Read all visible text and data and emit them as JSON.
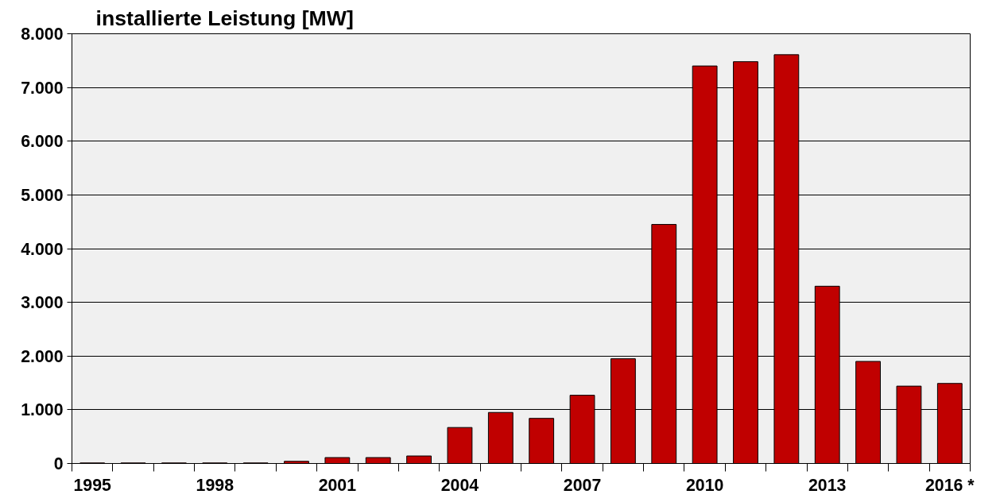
{
  "chart_data": {
    "type": "bar",
    "title": "installierte Leistung [MW]",
    "categories": [
      "1995",
      null,
      null,
      "1998",
      null,
      null,
      "2001",
      null,
      null,
      "2004",
      null,
      null,
      "2007",
      null,
      null,
      "2010",
      null,
      null,
      "2013",
      null,
      null,
      "2016 *"
    ],
    "values": [
      10,
      10,
      10,
      10,
      10,
      40,
      110,
      110,
      140,
      670,
      950,
      840,
      1270,
      1950,
      4450,
      7400,
      7480,
      7610,
      3300,
      1900,
      1440,
      1490
    ],
    "color": "#c00000",
    "ylim": [
      0,
      8000
    ],
    "yticks": [
      {
        "value": 0,
        "label": "0"
      },
      {
        "value": 1000,
        "label": "1.000"
      },
      {
        "value": 2000,
        "label": "2.000"
      },
      {
        "value": 3000,
        "label": "3.000"
      },
      {
        "value": 4000,
        "label": "4.000"
      },
      {
        "value": 5000,
        "label": "5.000"
      },
      {
        "value": 6000,
        "label": "6.000"
      },
      {
        "value": 7000,
        "label": "7.000"
      },
      {
        "value": 8000,
        "label": "8.000"
      }
    ],
    "grid": "y"
  }
}
